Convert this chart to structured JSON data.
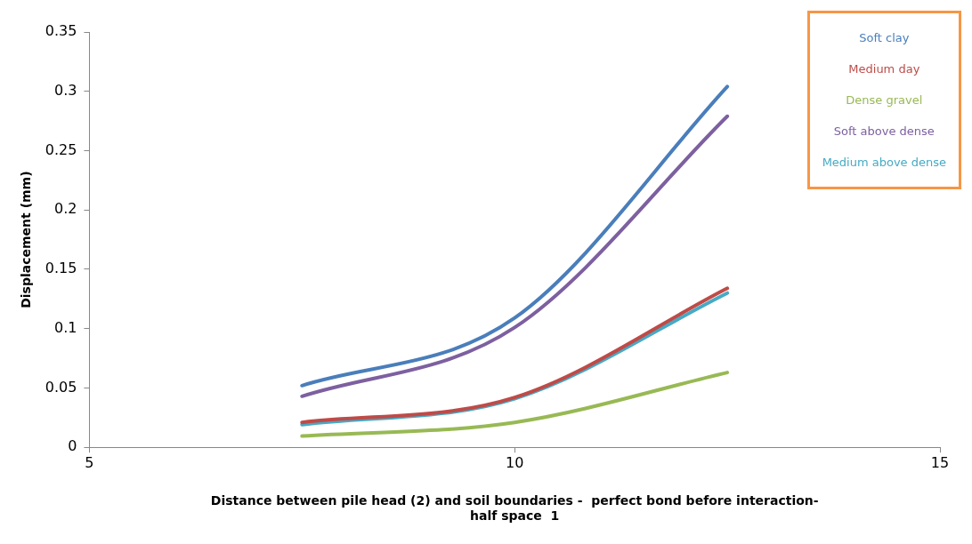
{
  "chart_data": {
    "type": "line",
    "xlabel": "Distance between pile head (2) and soil boundaries -  perfect bond before interaction-\nhalf space  1",
    "ylabel": "Displacement (mm)",
    "xlim": [
      5,
      15
    ],
    "xticks": [
      5,
      10,
      15
    ],
    "ylim": [
      0,
      0.35
    ],
    "yticks": [
      0,
      0.05,
      0.1,
      0.15,
      0.2,
      0.25,
      0.3,
      0.35
    ],
    "grid": false,
    "legend": "top right",
    "marker": "none",
    "line_style": "solid",
    "x": [
      7.5,
      10,
      12.5
    ],
    "series": [
      {
        "name": "Soft clay",
        "color": "#4a7ebb",
        "values": [
          0.052,
          0.109,
          0.304
        ]
      },
      {
        "name": "Medium day",
        "color": "#be4b48",
        "values": [
          0.021,
          0.042,
          0.134
        ]
      },
      {
        "name": "Dense gravel",
        "color": "#98b954",
        "values": [
          0.0095,
          0.021,
          0.063
        ]
      },
      {
        "name": "Soft above dense",
        "color": "#7d60a0",
        "values": [
          0.043,
          0.101,
          0.279
        ]
      },
      {
        "name": "Medium above dense",
        "color": "#46aac5",
        "values": [
          0.019,
          0.041,
          0.13
        ]
      }
    ]
  }
}
